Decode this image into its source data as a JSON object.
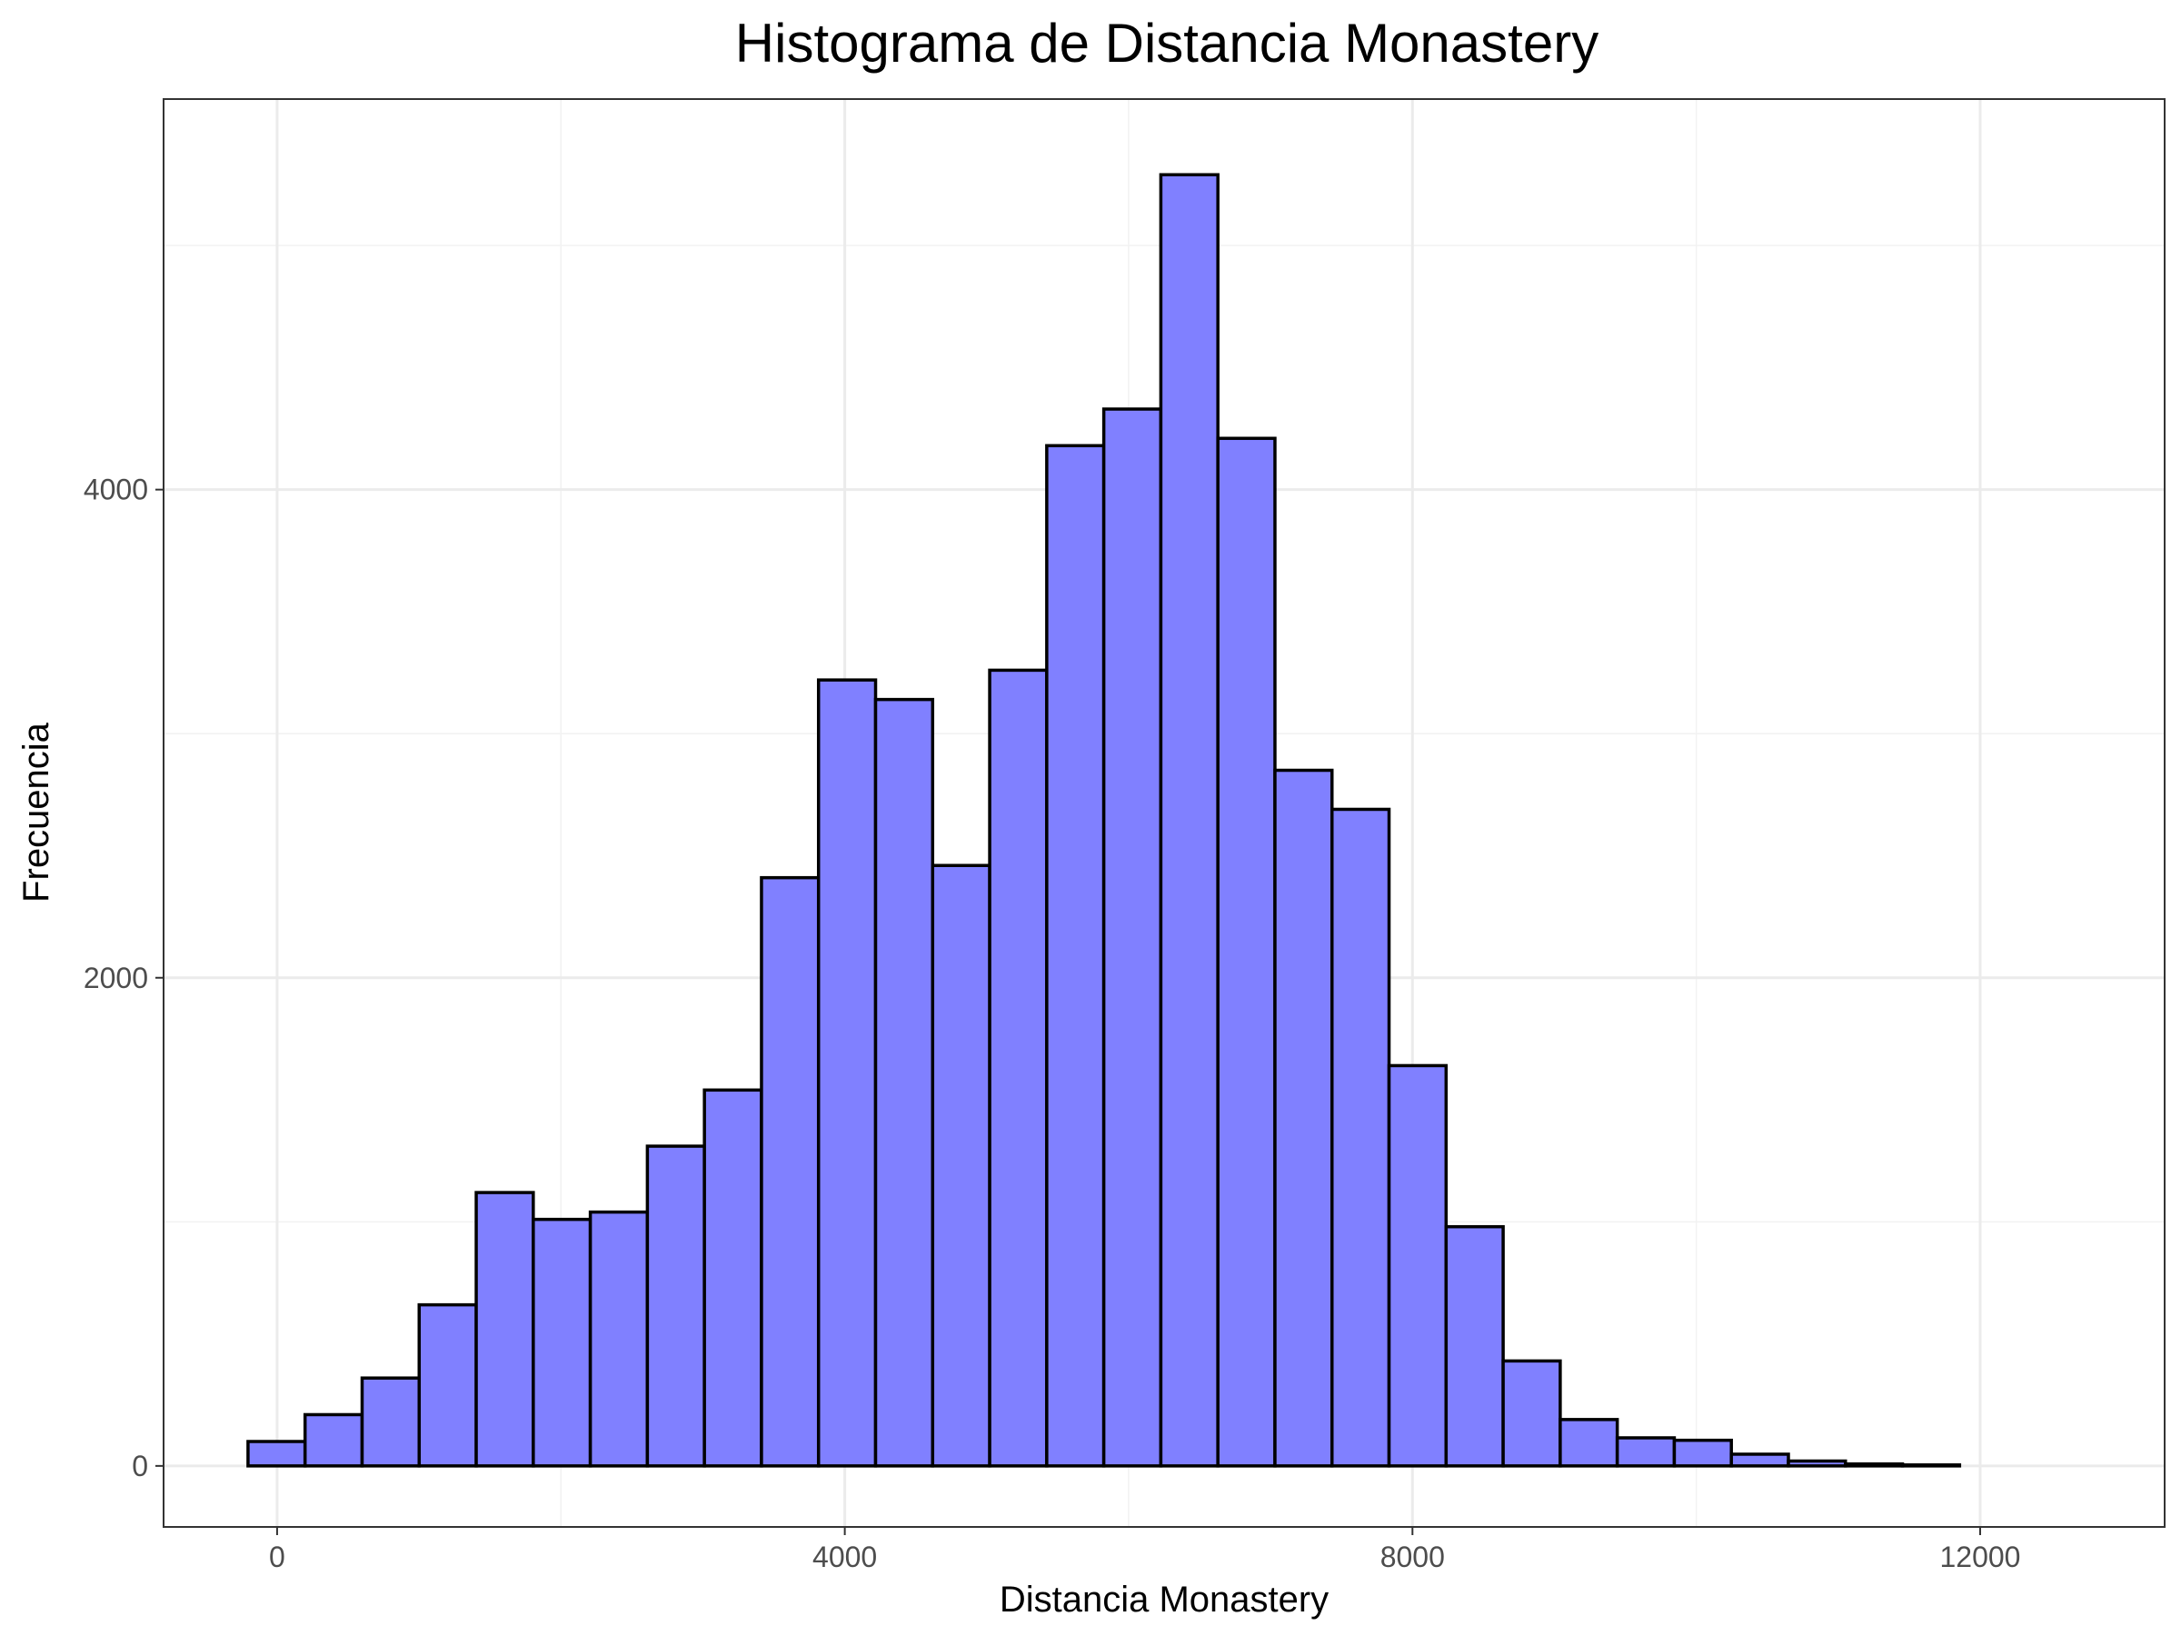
{
  "chart_data": {
    "type": "bar",
    "title": "Histograma de Distancia Monastery",
    "xlabel": "Distancia Monastery",
    "ylabel": "Frecuencia",
    "xlim": [
      -800,
      13300
    ],
    "ylim": [
      -250,
      5600
    ],
    "x_ticks": [
      0,
      4000,
      8000,
      12000
    ],
    "y_ticks": [
      0,
      2000,
      4000
    ],
    "x_minor": [
      2000,
      6000,
      10000
    ],
    "y_minor": [
      1000,
      3000,
      5000
    ],
    "grid": true,
    "bin_width": 402,
    "bar_color": "#8080ff",
    "bar_edge_color": "#000000",
    "bins": [
      {
        "x0": -205,
        "x1": 197,
        "count": 100
      },
      {
        "x0": 197,
        "x1": 599,
        "count": 210
      },
      {
        "x0": 599,
        "x1": 1001,
        "count": 360
      },
      {
        "x0": 1001,
        "x1": 1403,
        "count": 660
      },
      {
        "x0": 1403,
        "x1": 1805,
        "count": 1120
      },
      {
        "x0": 1805,
        "x1": 2207,
        "count": 1010
      },
      {
        "x0": 2207,
        "x1": 2609,
        "count": 1040
      },
      {
        "x0": 2609,
        "x1": 3011,
        "count": 1310
      },
      {
        "x0": 3011,
        "x1": 3413,
        "count": 1540
      },
      {
        "x0": 3413,
        "x1": 3815,
        "count": 2410
      },
      {
        "x0": 3815,
        "x1": 4217,
        "count": 3220
      },
      {
        "x0": 4217,
        "x1": 4619,
        "count": 3140
      },
      {
        "x0": 4619,
        "x1": 5021,
        "count": 2460
      },
      {
        "x0": 5021,
        "x1": 5423,
        "count": 3260
      },
      {
        "x0": 5423,
        "x1": 5825,
        "count": 4180
      },
      {
        "x0": 5825,
        "x1": 6227,
        "count": 4330
      },
      {
        "x0": 6227,
        "x1": 6629,
        "count": 5290
      },
      {
        "x0": 6629,
        "x1": 7031,
        "count": 4210
      },
      {
        "x0": 7031,
        "x1": 7433,
        "count": 2850
      },
      {
        "x0": 7433,
        "x1": 7835,
        "count": 2690
      },
      {
        "x0": 7835,
        "x1": 8237,
        "count": 1640
      },
      {
        "x0": 8237,
        "x1": 8639,
        "count": 980
      },
      {
        "x0": 8639,
        "x1": 9041,
        "count": 430
      },
      {
        "x0": 9041,
        "x1": 9443,
        "count": 190
      },
      {
        "x0": 9443,
        "x1": 9845,
        "count": 115
      },
      {
        "x0": 9845,
        "x1": 10247,
        "count": 105
      },
      {
        "x0": 10247,
        "x1": 10649,
        "count": 48
      },
      {
        "x0": 10649,
        "x1": 11051,
        "count": 20
      },
      {
        "x0": 11051,
        "x1": 11453,
        "count": 8
      },
      {
        "x0": 11453,
        "x1": 11855,
        "count": 4
      }
    ]
  }
}
